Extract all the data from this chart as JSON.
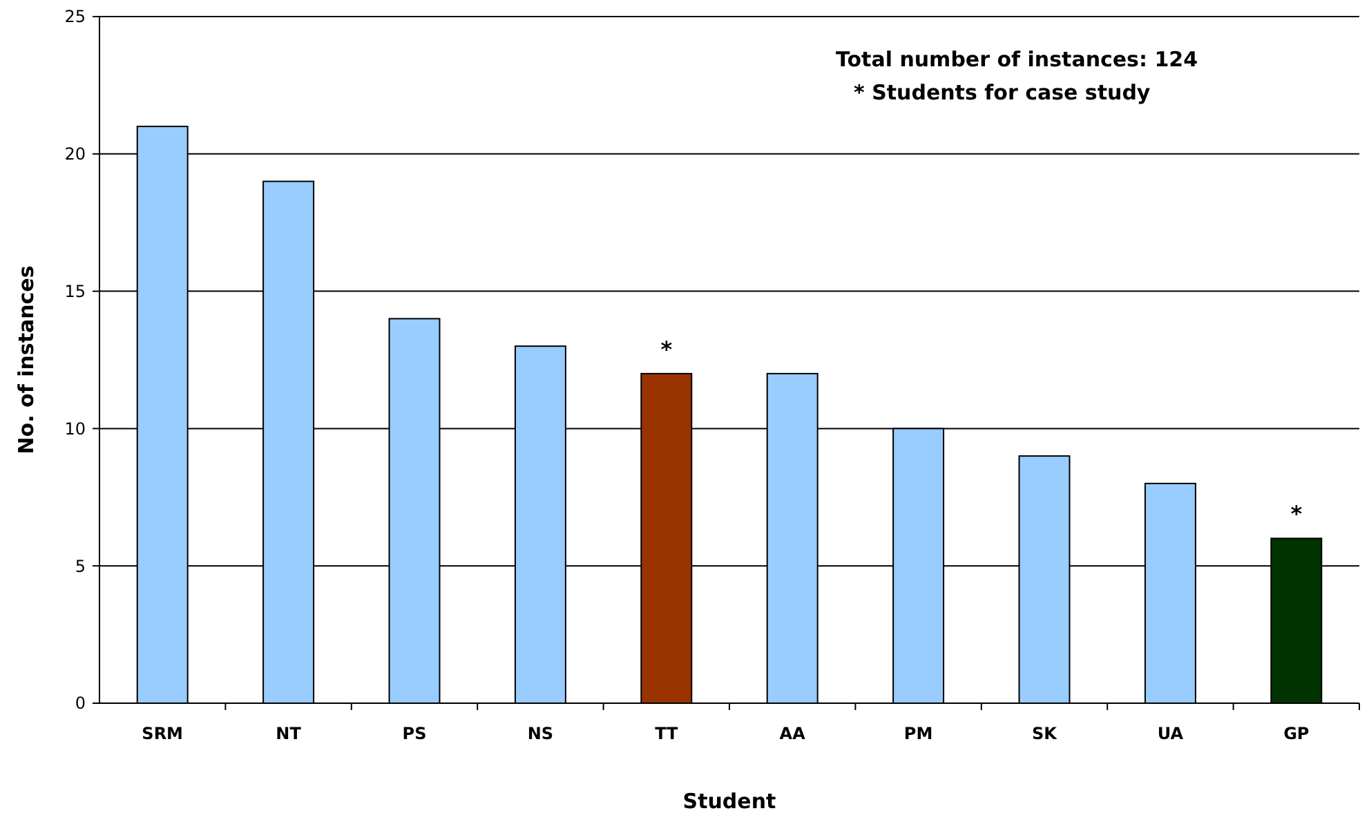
{
  "chart_data": {
    "type": "bar",
    "xlabel": "Student",
    "ylabel": "No. of instances",
    "categories": [
      "SRM",
      "NT",
      "PS",
      "NS",
      "TT",
      "AA",
      "PM",
      "SK",
      "UA",
      "GP"
    ],
    "values": [
      21,
      19,
      14,
      13,
      12,
      12,
      10,
      9,
      8,
      6
    ],
    "colors": [
      "#99ccff",
      "#99ccff",
      "#99ccff",
      "#99ccff",
      "#993300",
      "#99ccff",
      "#99ccff",
      "#99ccff",
      "#99ccff",
      "#003300"
    ],
    "ylim": [
      0,
      25
    ],
    "yticks": [
      0,
      5,
      10,
      15,
      20,
      25
    ],
    "grid": "y",
    "annotations": [
      "Total number of instances: 124",
      "* Students for case study",
      {
        "text": "*",
        "x": "TT",
        "y": 12
      },
      {
        "text": "*",
        "x": "GP",
        "y": 6
      }
    ]
  }
}
